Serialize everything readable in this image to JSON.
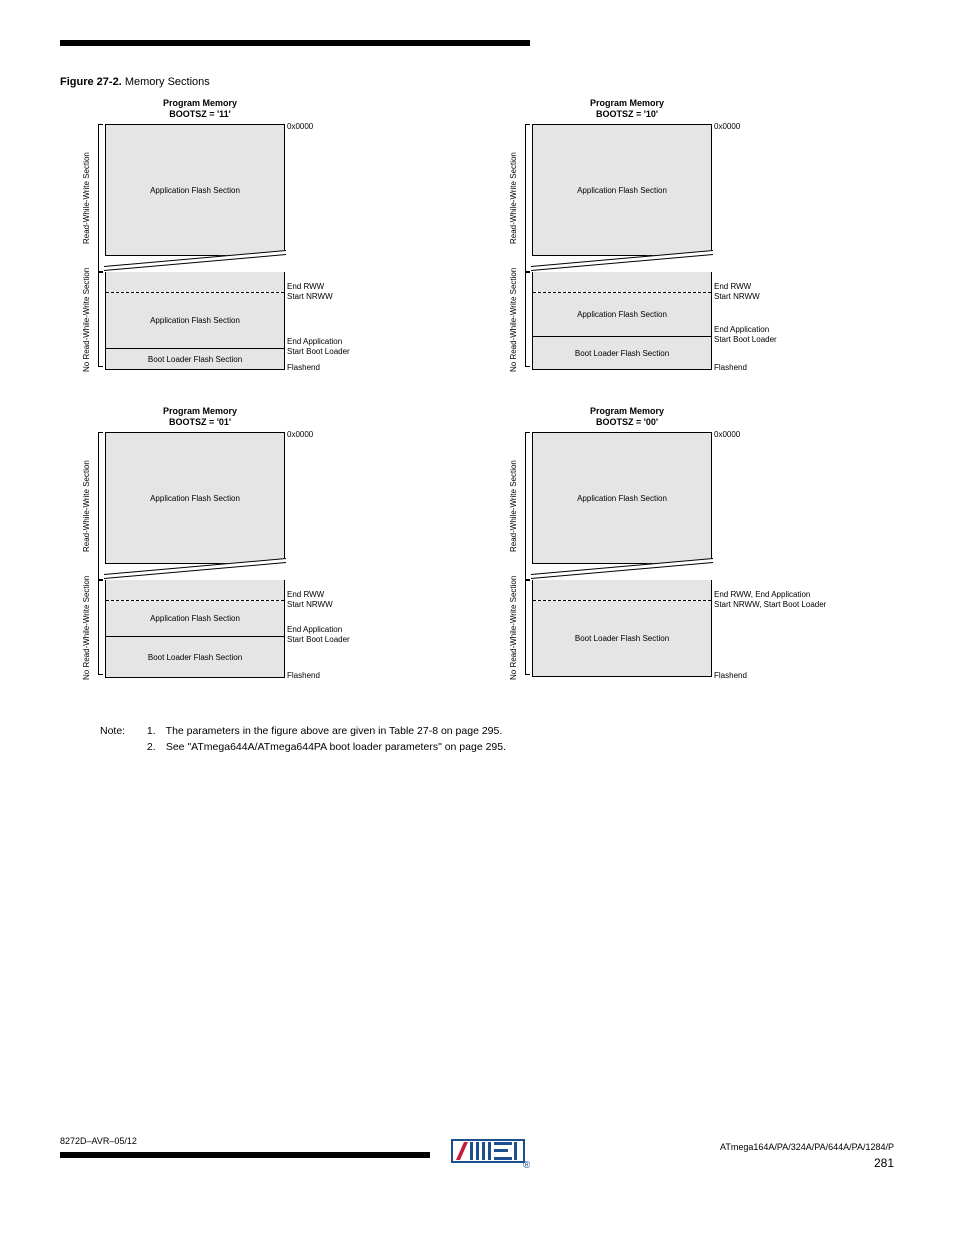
{
  "figure_label": "Figure 27-2.",
  "figure_caption": "Memory Sections",
  "panels": [
    {
      "title": "Program Memory\nBOOTSZ = '11'",
      "app_top": "Application Flash Section",
      "app_bot": "Application Flash Section",
      "boot": "Boot Loader Flash Section",
      "v1": "Read-While-Write Section",
      "v2": "No Read-While-Write Section",
      "r1": "0x0000",
      "r2": "End RWW",
      "r3": "Start NRWW",
      "r4": "End Application",
      "r5": "Start Boot Loader",
      "r6": "Flashend",
      "boot_h": 20,
      "bot_app_h": 55,
      "boot_loader_split": true
    },
    {
      "title": "Program Memory\nBOOTSZ = '10'",
      "app_top": "Application Flash Section",
      "app_bot": "Application Flash Section",
      "boot": "Boot Loader Flash Section",
      "v1": "Read-While-Write Section",
      "v2": "No Read-While-Write Section",
      "r1": "0x0000",
      "r2": "End RWW",
      "r3": "Start NRWW",
      "r4": "End Application",
      "r5": "Start Boot Loader",
      "r6": "Flashend",
      "boot_h": 32,
      "bot_app_h": 43,
      "boot_loader_split": true
    },
    {
      "title": "Program Memory\nBOOTSZ = '01'",
      "app_top": "Application Flash Section",
      "app_bot": "Application Flash Section",
      "boot": "Boot Loader Flash Section",
      "v1": "Read-While-Write Section",
      "v2": "No Read-While-Write Section",
      "r1": "0x0000",
      "r2": "End RWW",
      "r3": "Start NRWW",
      "r4": "End Application",
      "r5": "Start Boot Loader",
      "r6": "Flashend",
      "boot_h": 40,
      "bot_app_h": 35,
      "boot_loader_split": true
    },
    {
      "title": "Program Memory\nBOOTSZ = '00'",
      "app_top": "Application Flash Section",
      "app_bot": "",
      "boot": "Boot Loader Flash Section",
      "v1": "Read-While-Write Section",
      "v2": "No Read-While-Write Section",
      "r1": "0x0000",
      "r2": "End RWW, End Application",
      "r3": "Start NRWW, Start Boot Loader",
      "r4": "",
      "r5": "",
      "r6": "Flashend",
      "boot_h": 75,
      "bot_app_h": 0,
      "boot_loader_split": false
    }
  ],
  "note_label": "Note:",
  "note_1_num": "1.",
  "note_1": "The parameters in the figure above are given in Table 27-8 on page 295.",
  "note_2_num": "2.",
  "note_2": "See \"ATmega644A/ATmega644PA boot loader parameters\" on page 295.",
  "footer_doc": "8272D–AVR–05/12",
  "footer_title": "ATmega164A/PA/324A/PA/644A/PA/1284/P",
  "page": "281",
  "colors": {
    "section_bg": "#e5e5e5",
    "bg": "#ffffff",
    "line": "#000000",
    "logo_bar": "#1b4f8f",
    "logo_red": "#c41e3a"
  }
}
